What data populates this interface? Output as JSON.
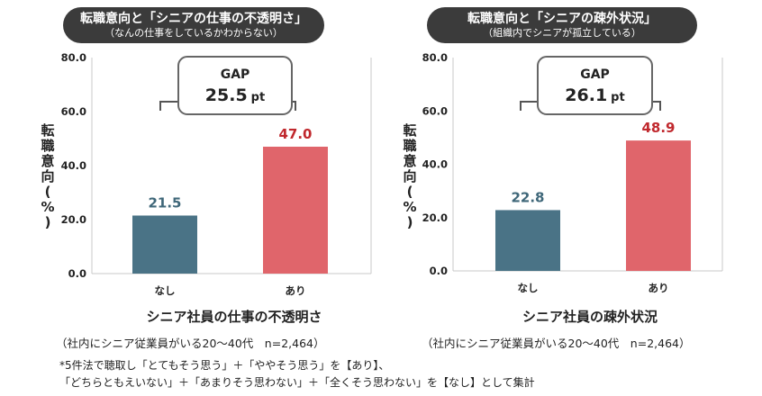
{
  "charts": [
    {
      "header_title": "転職意向と「シニアの仕事の不透明さ」",
      "header_subtitle": "（なんの仕事をしているかわからない）",
      "ylabel_chars": [
        "転",
        "職",
        "意",
        "向",
        "(",
        "%",
        ")"
      ],
      "gap_label": "GAP",
      "gap_value": "25.5",
      "gap_unit": "pt",
      "xtitle": "シニア社員の仕事の不透明さ",
      "sample": "（社内にシニア従業員がいる20～40代　n=2,464）",
      "bar_labels": [
        "21.5",
        "47.0"
      ]
    },
    {
      "header_title": "転職意向と「シニアの疎外状況」",
      "header_subtitle": "（組織内でシニアが孤立している）",
      "ylabel_chars": [
        "転",
        "職",
        "意",
        "向",
        "(",
        "%",
        ")"
      ],
      "gap_label": "GAP",
      "gap_value": "26.1",
      "gap_unit": "pt",
      "xtitle": "シニア社員の疎外状況",
      "sample": "（社内にシニア従業員がいる20～40代　n=2,464）",
      "bar_labels": [
        "22.8",
        "48.9"
      ]
    }
  ],
  "footnote": {
    "line1": "*5件法で聴取し「とてもそう思う」＋「ややそう思う」を【あり】、",
    "line2": "「どちらともえいない」＋「あまりそう思わない」＋「全くそう思わない」を【なし】として集計"
  },
  "colors": {
    "nashi": "#4a7386",
    "ari": "#e0656b",
    "nashi_label": "#3f6779",
    "ari_label": "#c0282d",
    "header_bg": "#3b3b3b"
  },
  "chart_data": [
    {
      "type": "bar",
      "categories": [
        "なし",
        "あり"
      ],
      "values": [
        21.5,
        47.0
      ],
      "title": "転職意向と「シニアの仕事の不透明さ」",
      "xlabel": "シニア社員の仕事の不透明さ",
      "ylabel": "転職意向(%)",
      "ylim": [
        0,
        80
      ],
      "yticks": [
        "0.0",
        "20.0",
        "40.0",
        "60.0",
        "80.0"
      ],
      "grid": false
    },
    {
      "type": "bar",
      "categories": [
        "なし",
        "あり"
      ],
      "values": [
        22.8,
        48.9
      ],
      "title": "転職意向と「シニアの疎外状況」",
      "xlabel": "シニア社員の疎外状況",
      "ylabel": "転職意向(%)",
      "ylim": [
        0,
        80
      ],
      "yticks": [
        "0.0",
        "20.0",
        "40.0",
        "60.0",
        "80.0"
      ],
      "grid": false
    }
  ]
}
